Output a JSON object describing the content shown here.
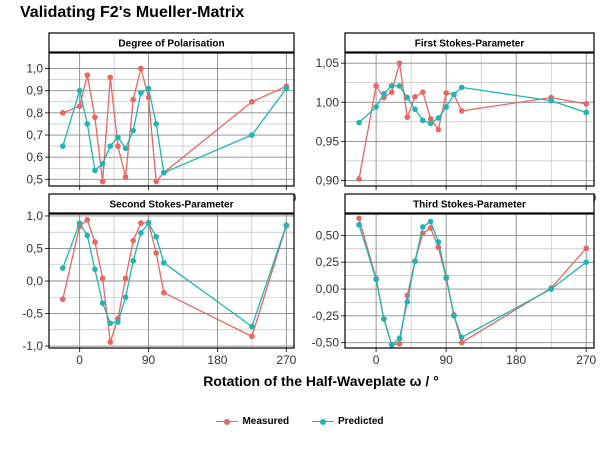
{
  "title": "Validating F2's Mueller-Matrix",
  "colors": {
    "Measured": "#E8675F",
    "Predicted": "#1FB5B5"
  },
  "legend": {
    "items": [
      "Measured",
      "Predicted"
    ]
  },
  "chart_data": {
    "type": "line",
    "xlabel": "Rotation of the Half-Waveplate ω / °",
    "xlim": [
      -40,
      280
    ],
    "xticks": [
      0,
      90,
      180,
      270
    ],
    "xtick_labels": [
      "0",
      "90",
      "180",
      "270"
    ],
    "legend_position": "bottom",
    "grid": true,
    "panels": [
      {
        "title": "Degree of Polarisation",
        "ylim": [
          0.47,
          1.07
        ],
        "yticks": [
          0.5,
          0.6,
          0.7,
          0.8,
          0.9,
          1.0
        ],
        "ytick_labels": [
          "0,5",
          "0,6",
          "0,7",
          "0,8",
          "0,9",
          "1,0"
        ],
        "series": [
          {
            "name": "Measured",
            "x": [
              -22,
              0,
              10,
              20,
              30,
              40,
              50,
              60,
              70,
              80,
              90,
              100,
              110,
              225,
              270
            ],
            "y": [
              0.8,
              0.83,
              0.97,
              0.78,
              0.49,
              0.96,
              0.65,
              0.51,
              0.86,
              1.0,
              0.87,
              0.49,
              0.53,
              0.85,
              0.92
            ]
          },
          {
            "name": "Predicted",
            "x": [
              -22,
              0,
              10,
              20,
              30,
              40,
              50,
              60,
              70,
              80,
              90,
              100,
              110,
              225,
              270
            ],
            "y": [
              0.65,
              0.9,
              0.75,
              0.54,
              0.57,
              0.65,
              0.69,
              0.64,
              0.72,
              0.89,
              0.91,
              0.75,
              0.53,
              0.7,
              0.91
            ]
          }
        ]
      },
      {
        "title": "First Stokes-Parameter",
        "ylim": [
          0.893,
          1.063
        ],
        "yticks": [
          0.9,
          0.95,
          1.0,
          1.05
        ],
        "ytick_labels": [
          "0,90",
          "0,95",
          "1,00",
          "1,05"
        ],
        "series": [
          {
            "name": "Measured",
            "x": [
              -22,
              0,
              10,
              20,
              30,
              40,
              50,
              60,
              70,
              80,
              90,
              100,
              110,
              225,
              270
            ],
            "y": [
              0.902,
              1.021,
              1.006,
              1.013,
              1.05,
              0.981,
              1.007,
              1.013,
              0.979,
              0.965,
              1.012,
              1.01,
              0.989,
              1.006,
              0.998
            ]
          },
          {
            "name": "Predicted",
            "x": [
              -22,
              0,
              10,
              20,
              30,
              40,
              50,
              60,
              70,
              80,
              90,
              100,
              110,
              225,
              270
            ],
            "y": [
              0.974,
              0.994,
              1.011,
              1.021,
              1.021,
              1.006,
              0.991,
              0.977,
              0.973,
              0.98,
              0.994,
              1.01,
              1.019,
              1.002,
              0.987
            ]
          }
        ]
      },
      {
        "title": "Second Stokes-Parameter",
        "ylim": [
          -1.03,
          1.03
        ],
        "yticks": [
          -1.0,
          -0.5,
          0.0,
          0.5,
          1.0
        ],
        "ytick_labels": [
          "-1,0",
          "-0,5",
          "0,0",
          "0,5",
          "1,0"
        ],
        "series": [
          {
            "name": "Measured",
            "x": [
              -22,
              0,
              10,
              20,
              30,
              40,
              50,
              60,
              70,
              80,
              90,
              100,
              110,
              225,
              270
            ],
            "y": [
              -0.28,
              0.84,
              0.94,
              0.6,
              0.04,
              -0.94,
              -0.58,
              0.04,
              0.62,
              0.89,
              0.9,
              0.43,
              -0.18,
              -0.85,
              0.85
            ]
          },
          {
            "name": "Predicted",
            "x": [
              -22,
              0,
              10,
              20,
              30,
              40,
              50,
              60,
              70,
              80,
              90,
              100,
              110,
              225,
              270
            ],
            "y": [
              0.2,
              0.89,
              0.7,
              0.18,
              -0.34,
              -0.65,
              -0.63,
              -0.25,
              0.31,
              0.74,
              0.89,
              0.68,
              0.28,
              -0.7,
              0.86
            ]
          }
        ]
      },
      {
        "title": "Third Stokes-Parameter",
        "ylim": [
          -0.55,
          0.7
        ],
        "yticks": [
          -0.5,
          -0.25,
          0.0,
          0.25,
          0.5
        ],
        "ytick_labels": [
          "-0,50",
          "-0,25",
          "0,00",
          "0,25",
          "0,50"
        ],
        "series": [
          {
            "name": "Measured",
            "x": [
              -22,
              0,
              10,
              20,
              30,
              40,
              50,
              60,
              70,
              80,
              90,
              100,
              110,
              225,
              270
            ],
            "y": [
              0.66,
              0.1,
              -0.28,
              -0.52,
              -0.51,
              -0.06,
              0.26,
              0.52,
              0.57,
              0.39,
              0.1,
              -0.24,
              -0.5,
              0.01,
              0.38
            ]
          },
          {
            "name": "Predicted",
            "x": [
              -22,
              0,
              10,
              20,
              30,
              40,
              50,
              60,
              70,
              80,
              90,
              100,
              110,
              225,
              270
            ],
            "y": [
              0.6,
              0.09,
              -0.28,
              -0.52,
              -0.46,
              -0.12,
              0.26,
              0.58,
              0.63,
              0.44,
              0.11,
              -0.25,
              -0.45,
              0.0,
              0.25
            ]
          }
        ]
      }
    ]
  }
}
